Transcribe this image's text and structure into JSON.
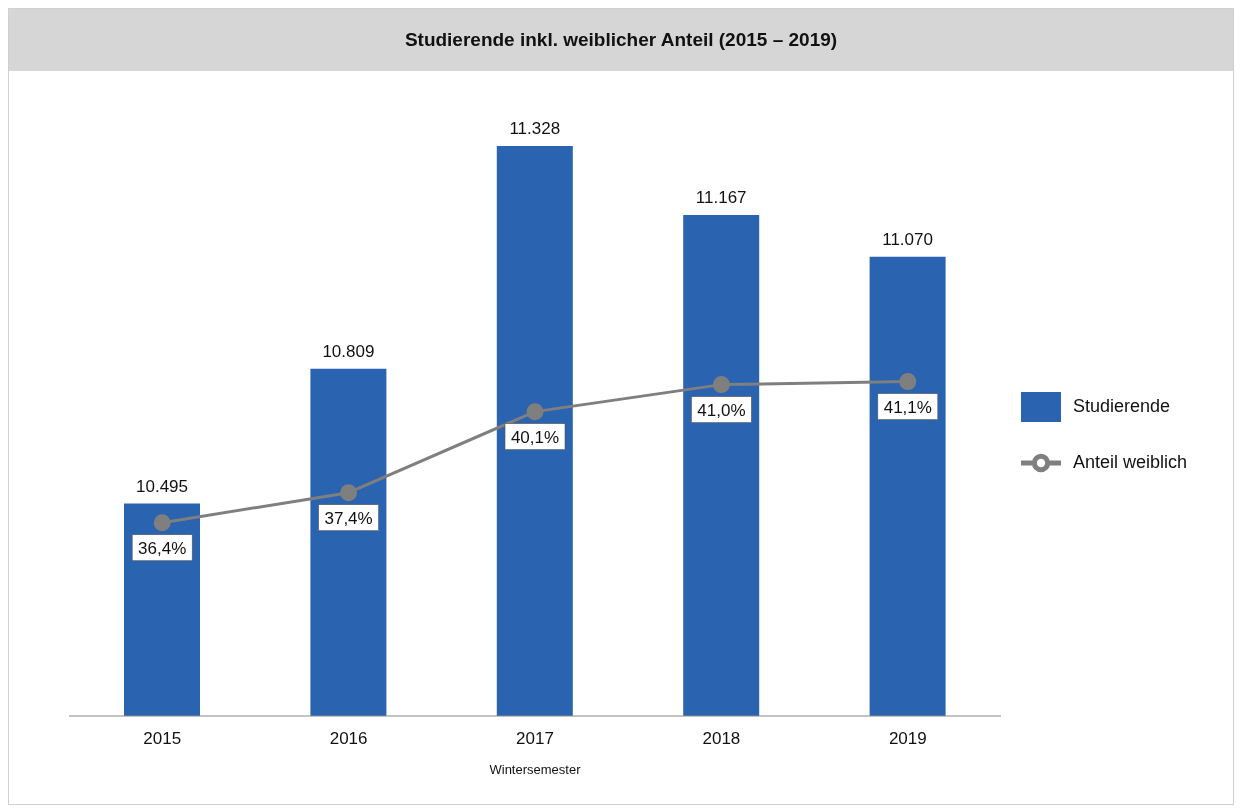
{
  "chart_data": {
    "type": "bar",
    "title": "Studierende inkl. weiblicher Anteil (2015 – 2019)",
    "xlabel": "Wintersemester",
    "categories": [
      "2015",
      "2016",
      "2017",
      "2018",
      "2019"
    ],
    "series": [
      {
        "name": "Studierende",
        "color": "#2a64b0",
        "values": [
          10495,
          10809,
          11328,
          11167,
          11070
        ],
        "value_labels": [
          "10.495",
          "10.809",
          "11.328",
          "11.167",
          "11.070"
        ]
      },
      {
        "name": "Anteil weiblich",
        "type": "line",
        "axis": "y2",
        "color": "#7f7f7f",
        "values": [
          36.4,
          37.4,
          40.1,
          41.0,
          41.1
        ],
        "value_labels": [
          "36,4%",
          "37,4%",
          "40,1%",
          "41,0%",
          "41,1%"
        ]
      }
    ],
    "ylim": [
      10000,
      11328
    ],
    "tick_labels": "x",
    "legend": "right",
    "grid": false,
    "marker": "circle",
    "line_style": "solid"
  }
}
